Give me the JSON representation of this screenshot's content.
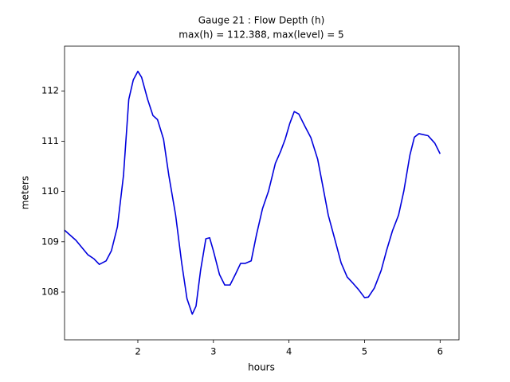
{
  "chart_data": {
    "type": "line",
    "title": "Gauge 21 : Flow Depth (h)",
    "subtitle": "max(h) = 112.388,    max(level) = 5",
    "xlabel": "hours",
    "ylabel": "meters",
    "xlim": [
      1.03,
      6.25
    ],
    "ylim": [
      107.05,
      112.89
    ],
    "xticks": [
      2,
      3,
      4,
      5,
      6
    ],
    "yticks": [
      108,
      109,
      110,
      111,
      112
    ],
    "grid": false,
    "x": [
      1.03,
      1.18,
      1.34,
      1.42,
      1.49,
      1.58,
      1.65,
      1.73,
      1.81,
      1.88,
      1.94,
      2.0,
      2.05,
      2.13,
      2.2,
      2.26,
      2.34,
      2.41,
      2.5,
      2.58,
      2.65,
      2.72,
      2.77,
      2.83,
      2.9,
      2.95,
      3.0,
      3.08,
      3.15,
      3.22,
      3.29,
      3.36,
      3.42,
      3.5,
      3.57,
      3.65,
      3.73,
      3.82,
      3.89,
      3.95,
      4.01,
      4.07,
      4.13,
      4.21,
      4.29,
      4.38,
      4.45,
      4.52,
      4.61,
      4.69,
      4.77,
      4.85,
      4.92,
      5.0,
      5.05,
      5.13,
      5.22,
      5.29,
      5.37,
      5.45,
      5.52,
      5.6,
      5.66,
      5.72,
      5.84,
      5.93,
      6.0
    ],
    "series": [
      {
        "name": "h",
        "color": "#0000dd",
        "values": [
          109.23,
          109.03,
          108.74,
          108.66,
          108.55,
          108.62,
          108.82,
          109.3,
          110.32,
          111.83,
          112.22,
          112.39,
          112.27,
          111.83,
          111.51,
          111.43,
          111.04,
          110.32,
          109.53,
          108.58,
          107.87,
          107.56,
          107.72,
          108.43,
          109.06,
          109.08,
          108.82,
          108.35,
          108.14,
          108.14,
          108.35,
          108.57,
          108.57,
          108.62,
          109.14,
          109.66,
          110.01,
          110.56,
          110.8,
          111.04,
          111.35,
          111.59,
          111.54,
          111.3,
          111.07,
          110.64,
          110.09,
          109.53,
          109.03,
          108.58,
          108.3,
          108.17,
          108.05,
          107.89,
          107.9,
          108.08,
          108.43,
          108.82,
          109.22,
          109.53,
          110.01,
          110.72,
          111.08,
          111.15,
          111.11,
          110.96,
          110.75
        ]
      }
    ]
  }
}
